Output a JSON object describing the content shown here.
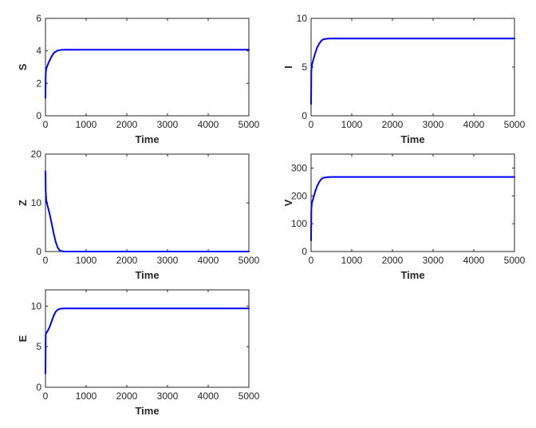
{
  "chart_data": [
    {
      "type": "line",
      "title": "",
      "xlabel": "Time",
      "ylabel": "S",
      "xlim": [
        0,
        5000
      ],
      "ylim": [
        0,
        6
      ],
      "xticks": [
        0,
        1000,
        2000,
        3000,
        4000,
        5000
      ],
      "yticks": [
        0,
        2,
        4,
        6
      ],
      "grid": false,
      "color": "#0000ff",
      "series": [
        {
          "name": "S",
          "x": [
            0,
            5,
            20,
            50,
            100,
            150,
            200,
            250,
            300,
            400,
            500,
            1000,
            2000,
            3000,
            4000,
            5000
          ],
          "values": [
            1.1,
            2.6,
            2.9,
            3.1,
            3.4,
            3.65,
            3.85,
            3.95,
            4.02,
            4.06,
            4.07,
            4.07,
            4.07,
            4.07,
            4.07,
            4.07
          ]
        }
      ]
    },
    {
      "type": "line",
      "title": "",
      "xlabel": "Time",
      "ylabel": "I",
      "xlim": [
        0,
        5000
      ],
      "ylim": [
        0,
        10
      ],
      "xticks": [
        0,
        1000,
        2000,
        3000,
        4000,
        5000
      ],
      "yticks": [
        0,
        5,
        10
      ],
      "grid": false,
      "color": "#0000ff",
      "series": [
        {
          "name": "I",
          "x": [
            0,
            5,
            20,
            50,
            100,
            150,
            200,
            250,
            300,
            400,
            500,
            1000,
            2000,
            3000,
            4000,
            5000
          ],
          "values": [
            1.2,
            4.6,
            5.2,
            5.7,
            6.4,
            7.0,
            7.4,
            7.7,
            7.85,
            7.92,
            7.93,
            7.93,
            7.93,
            7.93,
            7.93,
            7.93
          ]
        }
      ]
    },
    {
      "type": "line",
      "title": "",
      "xlabel": "Time",
      "ylabel": "Z",
      "xlim": [
        0,
        5000
      ],
      "ylim": [
        0,
        20
      ],
      "xticks": [
        0,
        1000,
        2000,
        3000,
        4000,
        5000
      ],
      "yticks": [
        0,
        10,
        20
      ],
      "grid": false,
      "color": "#0000ff",
      "series": [
        {
          "name": "Z",
          "x": [
            0,
            5,
            20,
            50,
            100,
            150,
            200,
            250,
            300,
            350,
            400,
            450,
            500,
            1000,
            2000,
            3000,
            4000,
            5000
          ],
          "values": [
            16.5,
            12.5,
            10.5,
            9.5,
            7.8,
            5.8,
            3.8,
            2.0,
            0.8,
            0.25,
            0.08,
            0.02,
            0.0,
            0.0,
            0.0,
            0.0,
            0.0,
            0.0
          ]
        }
      ]
    },
    {
      "type": "line",
      "title": "",
      "xlabel": "Time",
      "ylabel": "V",
      "xlim": [
        0,
        5000
      ],
      "ylim": [
        0,
        350
      ],
      "xticks": [
        0,
        1000,
        2000,
        3000,
        4000,
        5000
      ],
      "yticks": [
        0,
        100,
        200,
        300
      ],
      "grid": false,
      "color": "#0000ff",
      "series": [
        {
          "name": "V",
          "x": [
            0,
            5,
            20,
            50,
            100,
            150,
            200,
            250,
            300,
            400,
            500,
            1000,
            2000,
            3000,
            4000,
            5000
          ],
          "values": [
            40,
            150,
            175,
            190,
            215,
            235,
            250,
            260,
            265,
            267,
            268,
            268,
            268,
            268,
            268,
            268
          ]
        }
      ]
    },
    {
      "type": "line",
      "title": "",
      "xlabel": "Time",
      "ylabel": "E",
      "xlim": [
        0,
        5000
      ],
      "ylim": [
        0,
        12
      ],
      "xticks": [
        0,
        1000,
        2000,
        3000,
        4000,
        5000
      ],
      "yticks": [
        0,
        5,
        10
      ],
      "grid": false,
      "color": "#0000ff",
      "series": [
        {
          "name": "E",
          "x": [
            0,
            5,
            20,
            50,
            100,
            150,
            200,
            250,
            300,
            350,
            400,
            500,
            1000,
            2000,
            3000,
            4000,
            5000
          ],
          "values": [
            1.7,
            6.5,
            6.7,
            6.9,
            7.4,
            8.1,
            8.8,
            9.3,
            9.55,
            9.65,
            9.7,
            9.72,
            9.72,
            9.72,
            9.72,
            9.72,
            9.72
          ]
        }
      ]
    }
  ]
}
